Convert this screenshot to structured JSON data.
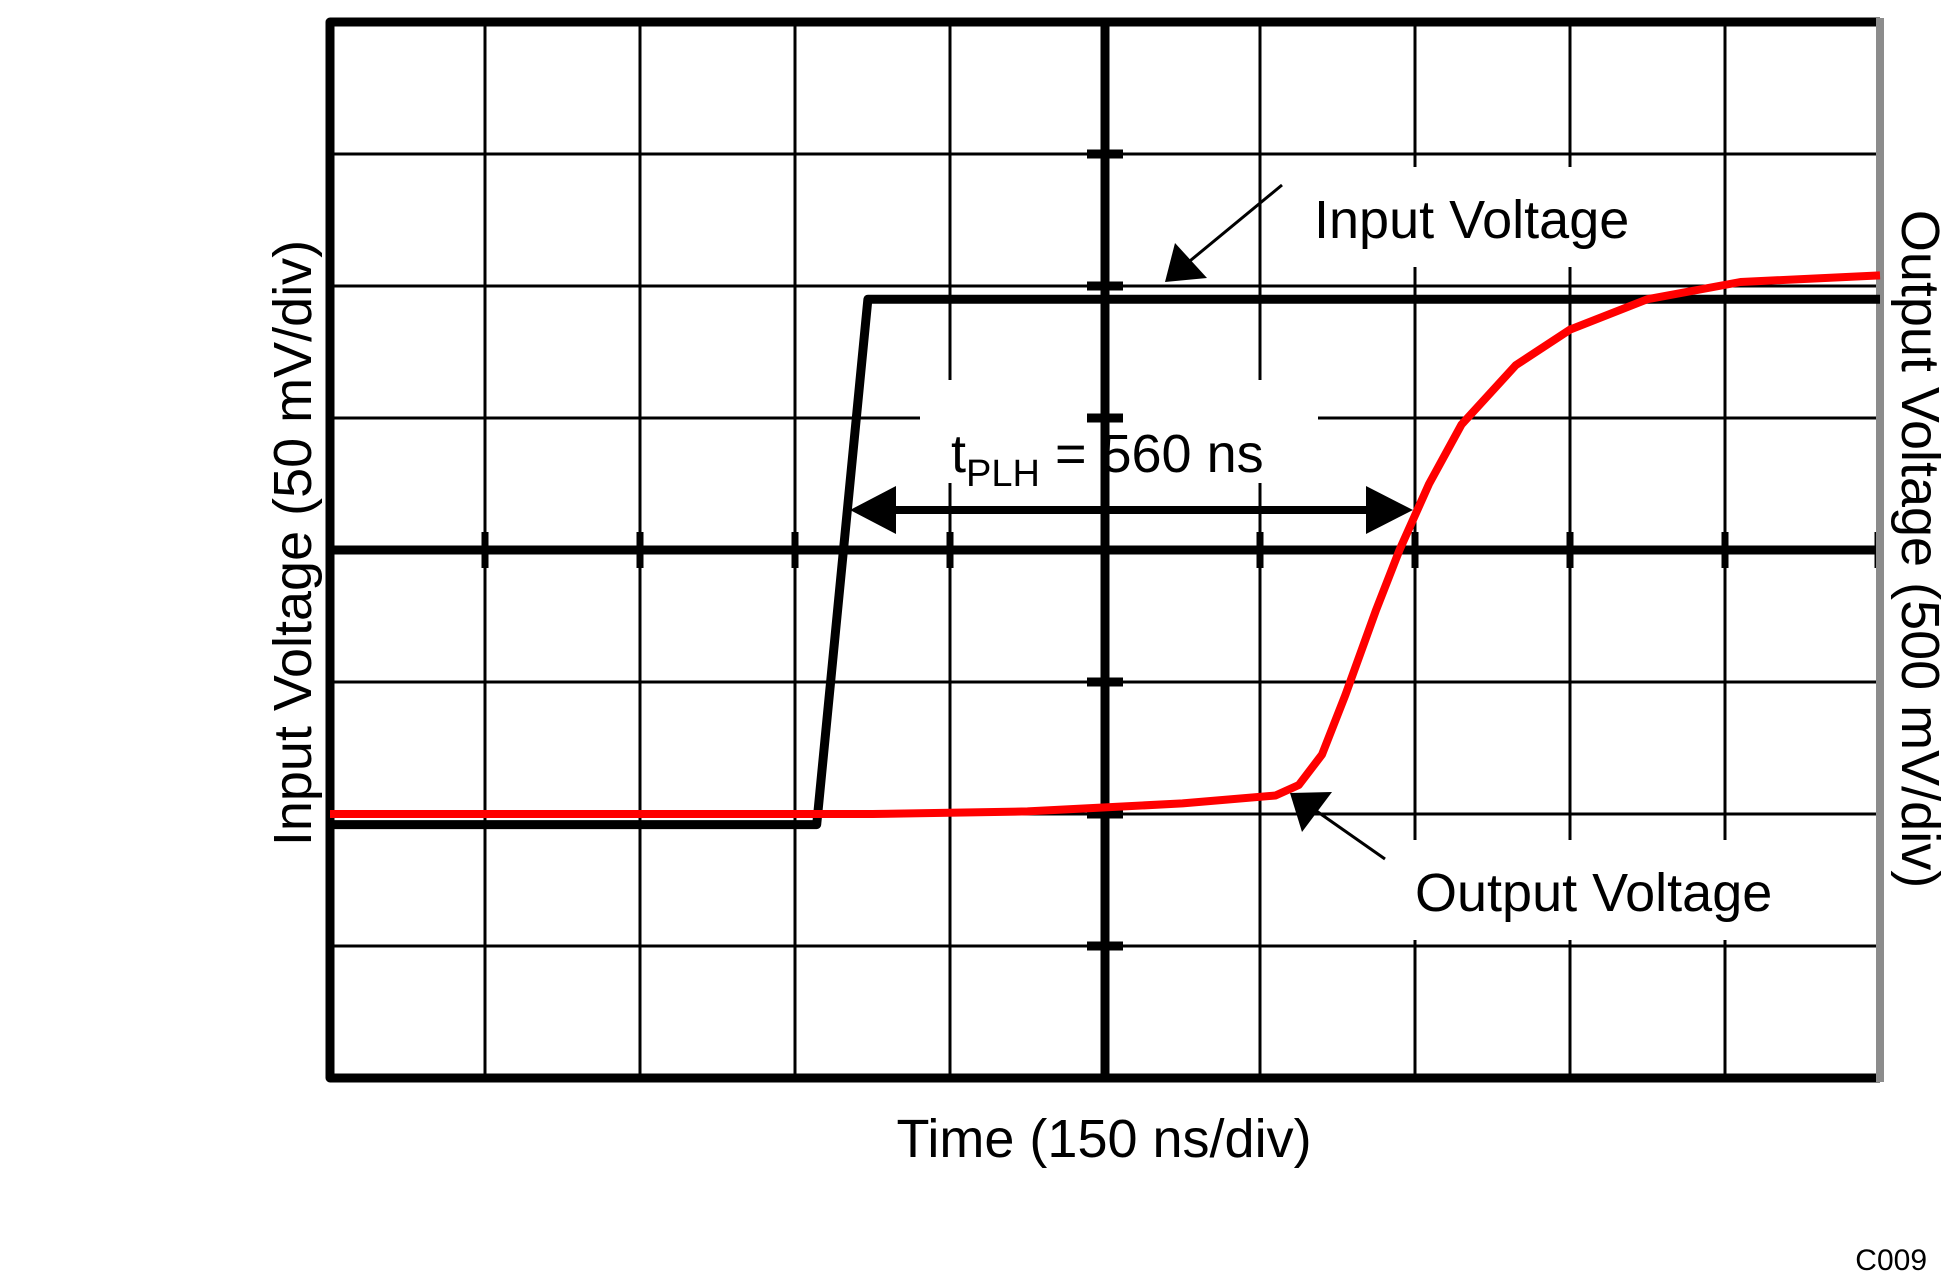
{
  "chart_data": {
    "type": "line",
    "title": "",
    "xlabel": "Time (150 ns/div)",
    "ylabel_left": "Input Voltage (50 mV/div)",
    "ylabel_right": "Output Voltage (500 mV/div)",
    "figure_id": "C009",
    "grid": true,
    "divisions": {
      "x": 10,
      "y": 8
    },
    "x_scale": "150 ns/div",
    "y_scale_left": "50 mV/div",
    "y_scale_right": "500 mV/div",
    "units": {
      "x": "div",
      "y": "div (from bottom)"
    },
    "series": [
      {
        "name": "Input Voltage",
        "color": "#000000",
        "axis": "left",
        "points": [
          [
            0,
            1.92
          ],
          [
            3.14,
            1.92
          ],
          [
            3.47,
            5.9
          ],
          [
            10,
            5.9
          ]
        ]
      },
      {
        "name": "Output Voltage",
        "color": "#ff0000",
        "axis": "right",
        "points": [
          [
            0,
            2.0
          ],
          [
            3.5,
            2.0
          ],
          [
            4.5,
            2.02
          ],
          [
            5.5,
            2.08
          ],
          [
            6.1,
            2.14
          ],
          [
            6.25,
            2.22
          ],
          [
            6.4,
            2.45
          ],
          [
            6.55,
            2.9
          ],
          [
            6.75,
            3.55
          ],
          [
            6.9,
            4.0
          ],
          [
            7.09,
            4.5
          ],
          [
            7.3,
            4.95
          ],
          [
            7.65,
            5.4
          ],
          [
            8.0,
            5.67
          ],
          [
            8.5,
            5.9
          ],
          [
            9.1,
            6.03
          ],
          [
            10.0,
            6.08
          ]
        ]
      }
    ],
    "annotations": [
      {
        "text": "tPLH = 560 ns",
        "main": "t",
        "sub": "PLH",
        "rest": " = 560 ns",
        "type": "double-arrow",
        "x_from": 3.42,
        "x_to": 7.05,
        "y": 4.3
      },
      {
        "text": "Input Voltage",
        "type": "arrow-label",
        "arrow_tip": [
          5.38,
          6.0
        ],
        "label_pos": [
          6.3,
          6.6
        ]
      },
      {
        "text": "Output Voltage",
        "type": "arrow-label",
        "arrow_tip": [
          6.18,
          2.14
        ],
        "label_pos": [
          7.0,
          1.3
        ]
      }
    ],
    "propagation_delay_ns": 560
  },
  "labels": {
    "xlabel": "Time (150 ns/div)",
    "ylabel_left": "Input Voltage (50 mV/div)",
    "ylabel_right": "Output Voltage (500 mV/div)",
    "input_label": "Input Voltage",
    "output_label": "Output Voltage",
    "tplh_main": "t",
    "tplh_sub": "PLH",
    "tplh_rest": " = 560 ns",
    "figure_id": "C009"
  },
  "colors": {
    "input_trace": "#000000",
    "output_trace": "#ff0000",
    "grid": "#000000",
    "right_border": "#8c8c8c",
    "background": "#ffffff"
  }
}
